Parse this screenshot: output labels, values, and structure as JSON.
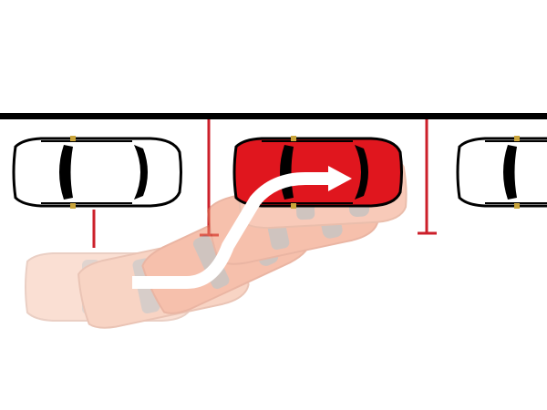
{
  "scene": {
    "background": "#ffffff",
    "curb_color": "#000000",
    "marker_color": "#cc1f2a",
    "parked_car_color": "#ffffff",
    "parking_car_color": "#e0161e",
    "ghost_car_color": "#f4b195",
    "ghost_car_color_mid": "#f08e6a",
    "arrow_color": "#ffffff"
  },
  "elements": {
    "curb": "curb-line",
    "parked_car_left": "parked-car-left",
    "parked_car_right": "parked-car-right",
    "parked_car_target": "parking-car-red",
    "ghost_path": "ghost-car-trail",
    "arrow": "direction-arrow-icon"
  }
}
